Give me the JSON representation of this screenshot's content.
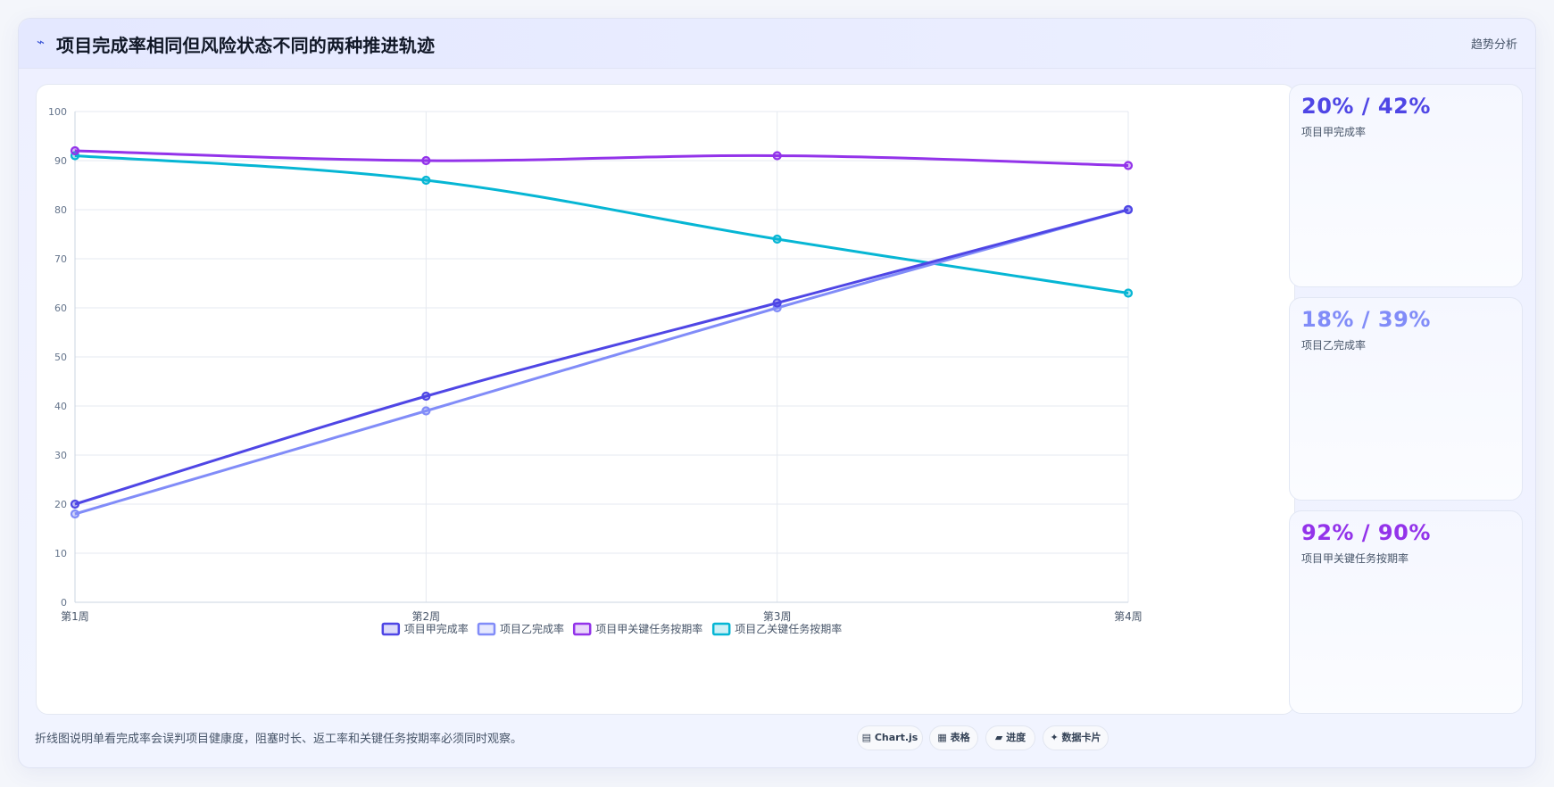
{
  "header": {
    "icon": "trend-icon",
    "title": "项目完成率相同但风险状态不同的两种推进轨迹",
    "right_label": "趋势分析"
  },
  "chart_data": {
    "type": "line",
    "title": "",
    "xlabel": "",
    "ylabel": "",
    "categories": [
      "第1周",
      "第2周",
      "第3周",
      "第4周"
    ],
    "ylim": [
      0,
      100
    ],
    "yticks": [
      0,
      10,
      20,
      30,
      40,
      50,
      60,
      70,
      80,
      90,
      100
    ],
    "grid": true,
    "legend_position": "bottom",
    "series": [
      {
        "name": "项目甲完成率",
        "values": [
          20,
          42,
          61,
          80
        ],
        "color": "#4f46e5"
      },
      {
        "name": "项目乙完成率",
        "values": [
          18,
          39,
          60,
          80
        ],
        "color": "#818cf8"
      },
      {
        "name": "项目甲关键任务按期率",
        "values": [
          92,
          90,
          91,
          89
        ],
        "color": "#9333ea"
      },
      {
        "name": "项目乙关键任务按期率",
        "values": [
          91,
          86,
          74,
          63
        ],
        "color": "#06b6d4"
      }
    ]
  },
  "side_cards": [
    {
      "value": "20% / 42%",
      "label": "项目甲完成率",
      "color": "#4f46e5"
    },
    {
      "value": "18% / 39%",
      "label": "项目乙完成率",
      "color": "#818cf8"
    },
    {
      "value": "92% / 90%",
      "label": "项目甲关键任务按期率",
      "color": "#9333ea"
    }
  ],
  "footer": {
    "note": "折线图说明单看完成率会误判项目健康度，阻塞时长、返工率和关键任务按期率必须同时观察。",
    "pills": [
      "▤ Chart.js",
      "▦ 表格",
      "▰ 进度",
      "✦ 数据卡片"
    ]
  }
}
